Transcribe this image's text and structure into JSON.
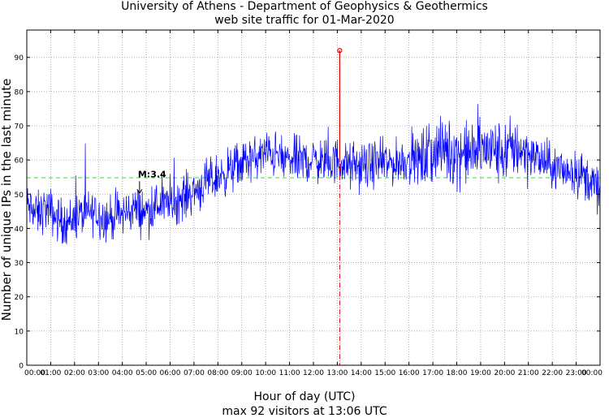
{
  "chart_data": {
    "type": "line",
    "title": "University of Athens - Department of Geophysics & Geothermics",
    "subtitle": "web site traffic for 01-Mar-2020",
    "xlabel": "Hour of day (UTC)",
    "footer": "max 92 visitors at 13:06 UTC",
    "ylabel": "Number of unique IPs in the last minute",
    "xlim": [
      0,
      24
    ],
    "ylim": [
      0,
      98
    ],
    "x_ticks": [
      "00:00",
      "01:00",
      "02:00",
      "03:00",
      "04:00",
      "05:00",
      "06:00",
      "07:00",
      "08:00",
      "09:00",
      "10:00",
      "11:00",
      "12:00",
      "13:00",
      "14:00",
      "15:00",
      "16:00",
      "17:00",
      "18:00",
      "19:00",
      "20:00",
      "21:00",
      "22:00",
      "23:00",
      "00:00"
    ],
    "y_ticks": [
      0,
      10,
      20,
      30,
      40,
      50,
      60,
      70,
      80,
      90
    ],
    "grid": true,
    "series": [
      {
        "color": "#0000ff",
        "x_hours": [
          0,
          0.25,
          0.5,
          0.75,
          1,
          1.25,
          1.5,
          1.75,
          2,
          2.25,
          2.5,
          2.75,
          3,
          3.25,
          3.5,
          3.75,
          4,
          4.25,
          4.5,
          4.75,
          5,
          5.25,
          5.5,
          5.75,
          6,
          6.25,
          6.5,
          6.75,
          7,
          7.25,
          7.5,
          7.75,
          8,
          8.25,
          8.5,
          8.75,
          9,
          9.25,
          9.5,
          9.75,
          10,
          10.25,
          10.5,
          10.75,
          11,
          11.25,
          11.5,
          11.75,
          12,
          12.25,
          12.5,
          12.75,
          13,
          13.25,
          13.5,
          13.75,
          14,
          14.25,
          14.5,
          14.75,
          15,
          15.25,
          15.5,
          15.75,
          16,
          16.25,
          16.5,
          16.75,
          17,
          17.25,
          17.5,
          17.75,
          18,
          18.25,
          18.5,
          18.75,
          19,
          19.25,
          19.5,
          19.75,
          20,
          20.25,
          20.5,
          20.75,
          21,
          21.25,
          21.5,
          21.75,
          22,
          22.25,
          22.5,
          22.75,
          23,
          23.25,
          23.5,
          23.75,
          24
        ],
        "values": [
          47,
          45,
          44,
          46,
          45,
          43,
          42,
          42,
          43,
          44,
          44,
          45,
          44,
          43,
          43,
          44,
          44,
          45,
          46,
          45,
          45,
          46,
          47,
          47,
          48,
          48,
          49,
          50,
          51,
          52,
          53,
          54,
          55,
          56,
          57,
          58,
          59,
          60,
          60,
          61,
          62,
          62,
          61,
          60,
          60,
          60,
          60,
          60,
          60,
          60,
          59,
          59,
          60,
          59,
          58,
          58,
          58,
          58,
          59,
          59,
          59,
          59,
          59,
          60,
          60,
          60,
          60,
          61,
          62,
          63,
          63,
          62,
          62,
          62,
          62,
          62,
          63,
          63,
          63,
          62,
          62,
          63,
          64,
          63,
          62,
          61,
          60,
          59,
          58,
          57,
          57,
          57,
          56,
          56,
          54,
          53,
          50
        ]
      }
    ],
    "peak": {
      "x_hours": 13.1,
      "value": 92
    },
    "reference_line": {
      "value": 54.8,
      "color": "#33dd33"
    },
    "annotation": {
      "text": "M:3.4",
      "x_hours": 4.72,
      "value": 50
    }
  }
}
